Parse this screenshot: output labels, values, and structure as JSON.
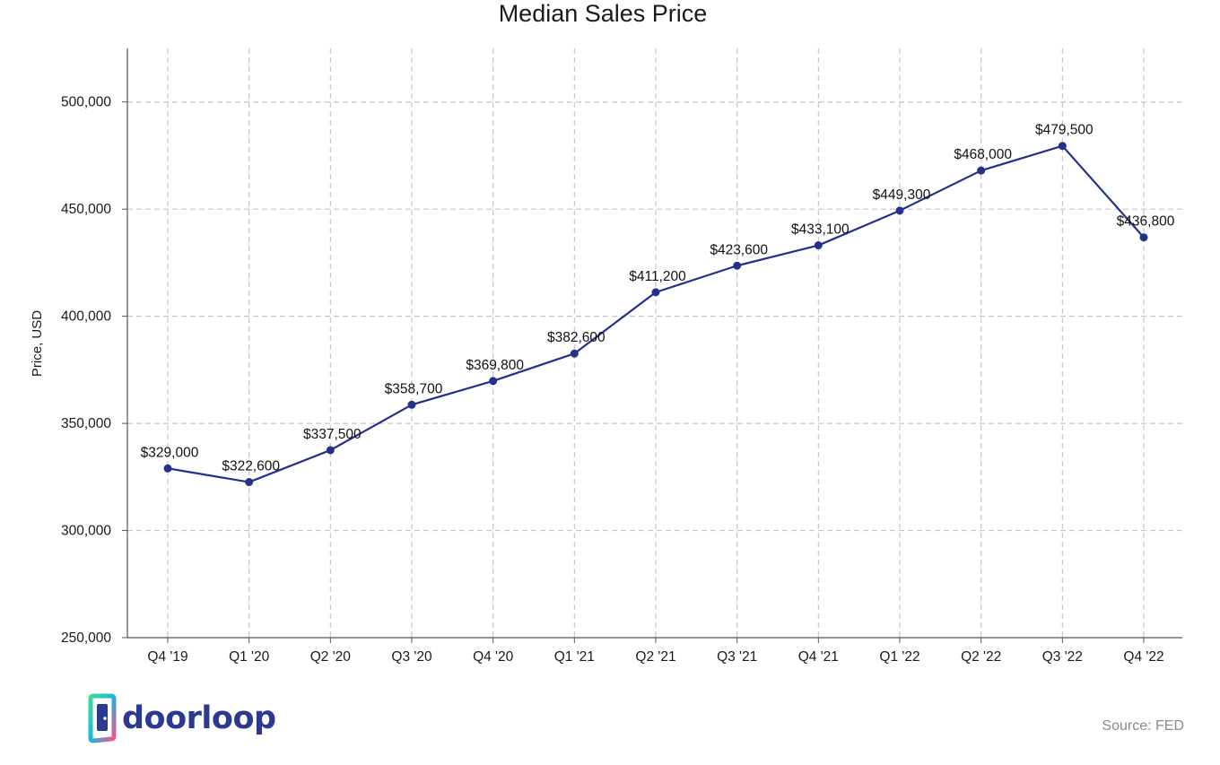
{
  "chart_data": {
    "type": "line",
    "title": "Median Sales Price",
    "xlabel": "",
    "ylabel": "Price, USD",
    "categories": [
      "Q4 '19",
      "Q1 '20",
      "Q2 '20",
      "Q3 '20",
      "Q4 '20",
      "Q1 '21",
      "Q2 '21",
      "Q3 '21",
      "Q4 '21",
      "Q1 '22",
      "Q2 '22",
      "Q3 '22",
      "Q4 '22"
    ],
    "values": [
      329000,
      322600,
      337500,
      358700,
      369800,
      382600,
      411200,
      423600,
      433100,
      449300,
      468000,
      479500,
      436800
    ],
    "data_labels": [
      "$329,000",
      "$322,600",
      "$337,500",
      "$358,700",
      "$369,800",
      "$382,600",
      "$411,200",
      "$423,600",
      "$433,100",
      "$449,300",
      "$468,000",
      "$479,500",
      "$436,800"
    ],
    "yticks": [
      250000,
      300000,
      350000,
      400000,
      450000,
      500000
    ],
    "ytick_labels": [
      "250,000",
      "300,000",
      "350,000",
      "400,000",
      "450,000",
      "500,000"
    ],
    "ylim": [
      250000,
      525000
    ],
    "grid": true,
    "line_color": "#23318a",
    "grid_color": "#c9c3d1"
  },
  "branding": {
    "logo_text": "doorloop",
    "source": "Source: FED"
  }
}
